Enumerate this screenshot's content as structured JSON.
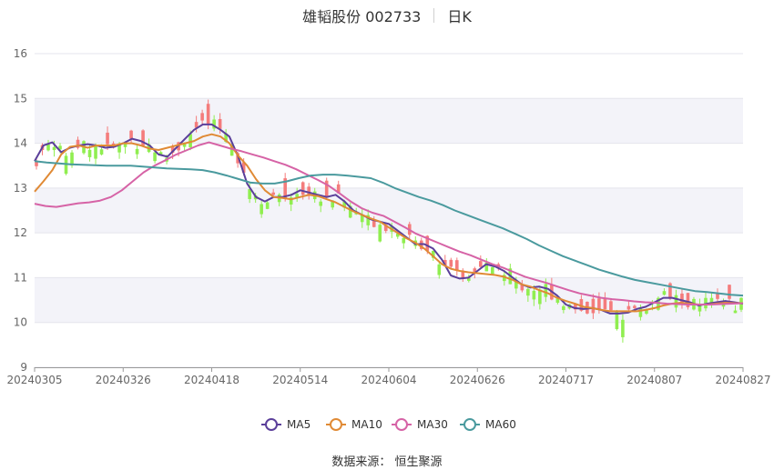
{
  "title": {
    "name": "雄韬股份 002733",
    "period": "日K"
  },
  "source": "数据来源：  恒生聚源",
  "chart_data": {
    "type": "candlestick",
    "title": "雄韬股份 002733 日K",
    "ylim": [
      9,
      16
    ],
    "yticks": [
      "9",
      "10",
      "11",
      "12",
      "13",
      "14",
      "15",
      "16"
    ],
    "xticks": [
      "20240305",
      "20240326",
      "20240418",
      "20240514",
      "20240604",
      "20240626",
      "20240717",
      "20240807",
      "20240827"
    ],
    "grid": true,
    "band_colors": [
      "#ffffff",
      "#f3f3f9"
    ],
    "up_color": "#f47c7c",
    "down_color": "#90ee50",
    "legend_position": "bottom",
    "series": [
      {
        "name": "MA5",
        "color": "#5b3f9a",
        "values": [
          13.6,
          13.95,
          14.02,
          13.8,
          13.9,
          13.95,
          13.98,
          13.95,
          13.9,
          13.92,
          14.0,
          14.1,
          14.05,
          13.95,
          13.75,
          13.7,
          13.9,
          14.1,
          14.3,
          14.42,
          14.42,
          14.3,
          14.15,
          13.7,
          13.1,
          12.8,
          12.7,
          12.8,
          12.8,
          12.85,
          12.95,
          12.9,
          12.85,
          12.8,
          12.85,
          12.7,
          12.5,
          12.4,
          12.3,
          12.25,
          12.2,
          12.05,
          11.9,
          11.75,
          11.75,
          11.65,
          11.4,
          11.05,
          10.98,
          11.0,
          11.15,
          11.3,
          11.25,
          11.15,
          11.0,
          10.85,
          10.78,
          10.8,
          10.75,
          10.6,
          10.4,
          10.32,
          10.3,
          10.32,
          10.28,
          10.2,
          10.2,
          10.22,
          10.3,
          10.35,
          10.45,
          10.55,
          10.55,
          10.5,
          10.45,
          10.38,
          10.42,
          10.45,
          10.48,
          10.45,
          10.42
        ]
      },
      {
        "name": "MA10",
        "color": "#e08a35",
        "values": [
          12.92,
          13.15,
          13.4,
          13.75,
          13.92,
          13.95,
          13.9,
          13.95,
          13.95,
          13.95,
          14.0,
          14.0,
          13.95,
          13.88,
          13.85,
          13.9,
          13.95,
          14.0,
          14.05,
          14.15,
          14.2,
          14.15,
          14.0,
          13.72,
          13.5,
          13.2,
          12.95,
          12.8,
          12.78,
          12.75,
          12.8,
          12.85,
          12.82,
          12.75,
          12.68,
          12.58,
          12.48,
          12.4,
          12.32,
          12.25,
          12.12,
          12.0,
          11.88,
          11.78,
          11.65,
          11.48,
          11.3,
          11.2,
          11.15,
          11.12,
          11.1,
          11.08,
          11.06,
          11.02,
          10.95,
          10.85,
          10.8,
          10.72,
          10.65,
          10.55,
          10.48,
          10.42,
          10.35,
          10.32,
          10.28,
          10.25,
          10.25,
          10.25,
          10.25,
          10.28,
          10.32,
          10.38,
          10.42,
          10.44,
          10.42,
          10.4,
          10.4,
          10.42,
          10.44,
          10.43,
          10.43
        ]
      },
      {
        "name": "MA30",
        "color": "#d663a6",
        "values": [
          12.65,
          12.6,
          12.58,
          12.62,
          12.66,
          12.68,
          12.72,
          12.8,
          12.95,
          13.15,
          13.35,
          13.5,
          13.62,
          13.75,
          13.85,
          13.95,
          14.02,
          13.95,
          13.88,
          13.82,
          13.75,
          13.68,
          13.6,
          13.52,
          13.42,
          13.3,
          13.18,
          13.05,
          12.88,
          12.7,
          12.55,
          12.45,
          12.38,
          12.25,
          12.12,
          11.98,
          11.88,
          11.78,
          11.68,
          11.58,
          11.5,
          11.4,
          11.3,
          11.22,
          11.12,
          11.02,
          10.95,
          10.88,
          10.8,
          10.72,
          10.65,
          10.6,
          10.55,
          10.52,
          10.5,
          10.47,
          10.45,
          10.44,
          10.42,
          10.41,
          10.4,
          10.4,
          10.4,
          10.41,
          10.42,
          10.43
        ]
      },
      {
        "name": "MA60",
        "color": "#4a9a9e",
        "values": [
          13.6,
          13.57,
          13.55,
          13.53,
          13.52,
          13.51,
          13.5,
          13.5,
          13.5,
          13.48,
          13.46,
          13.44,
          13.43,
          13.42,
          13.4,
          13.35,
          13.28,
          13.2,
          13.12,
          13.1,
          13.1,
          13.15,
          13.22,
          13.28,
          13.3,
          13.3,
          13.28,
          13.25,
          13.22,
          13.12,
          13.0,
          12.9,
          12.8,
          12.72,
          12.62,
          12.5,
          12.4,
          12.3,
          12.2,
          12.1,
          11.98,
          11.86,
          11.72,
          11.6,
          11.48,
          11.38,
          11.28,
          11.18,
          11.1,
          11.02,
          10.95,
          10.9,
          10.85,
          10.8,
          10.75,
          10.7,
          10.68,
          10.65,
          10.62,
          10.6
        ]
      }
    ]
  },
  "legend": [
    {
      "name": "MA5",
      "color": "#5b3f9a"
    },
    {
      "name": "MA10",
      "color": "#e08a35"
    },
    {
      "name": "MA30",
      "color": "#d663a6"
    },
    {
      "name": "MA60",
      "color": "#4a9a9e"
    }
  ]
}
